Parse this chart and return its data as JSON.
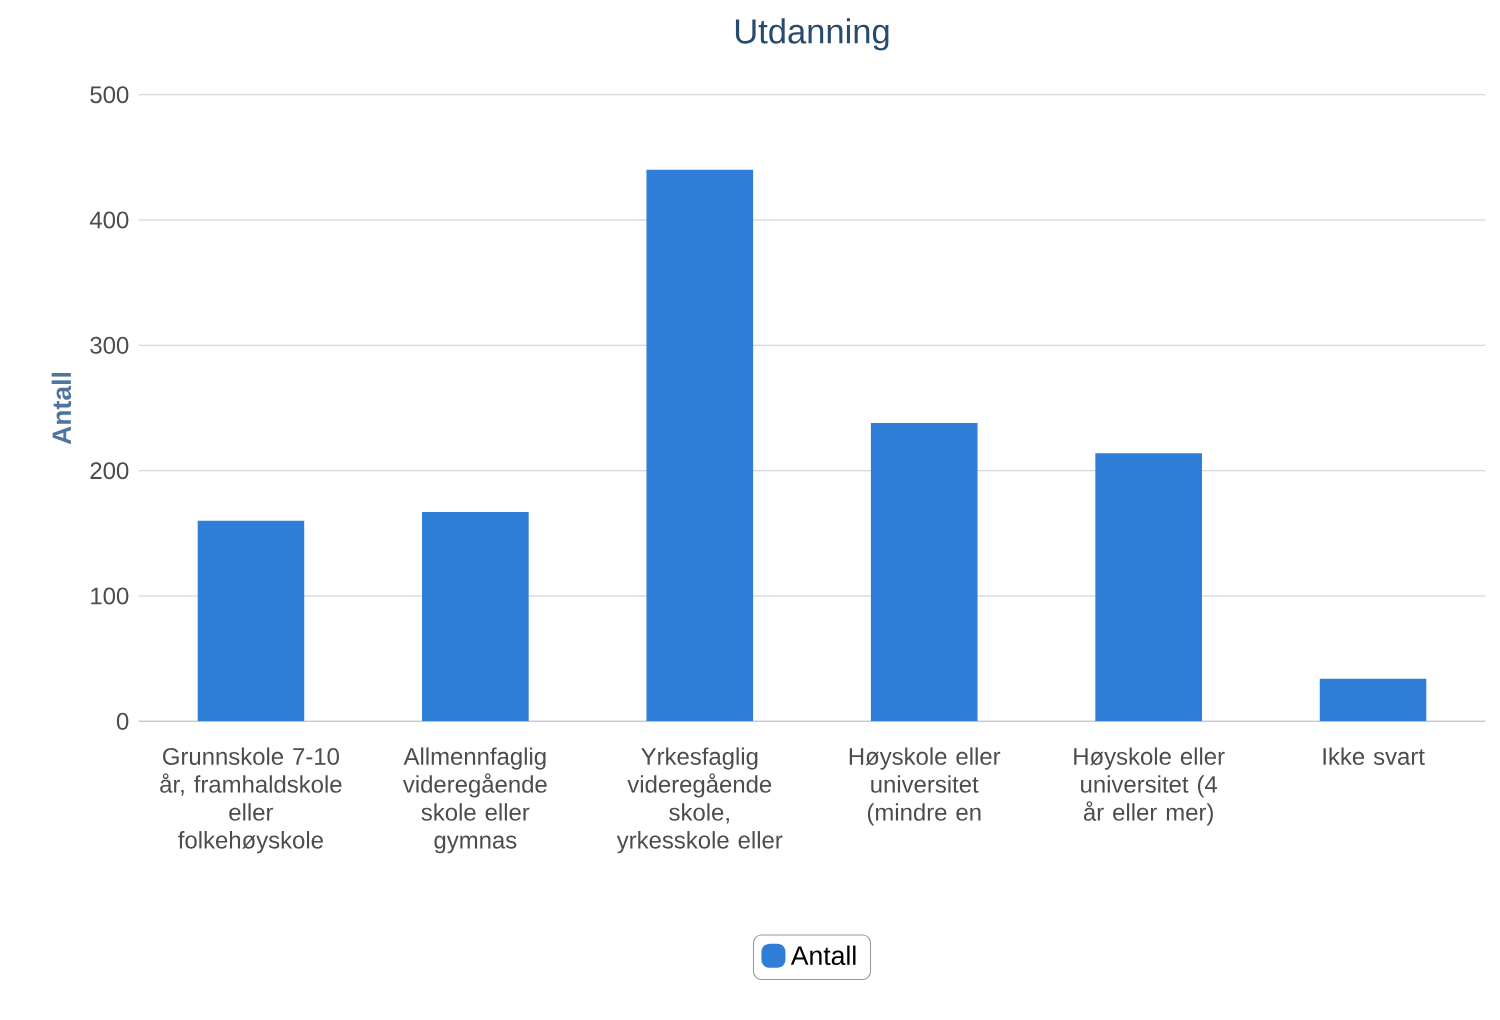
{
  "chart_data": {
    "type": "bar",
    "title": "Utdanning",
    "ylabel": "Antall",
    "categories": [
      "Grunnskole 7-10 år, framhaldskole eller folkehøyskole",
      "Allmennfaglig videregående skole eller gymnas",
      "Yrkesfaglig videregående skole, yrkesskole eller",
      "Høyskole eller universitet (mindre en",
      "Høyskole eller universitet (4 år eller mer)",
      "Ikke svart"
    ],
    "series": [
      {
        "name": "Antall",
        "color": "#2f7ed8",
        "values": [
          160,
          167,
          440,
          238,
          214,
          34
        ]
      }
    ],
    "ylim": [
      0,
      500
    ],
    "yticks": [
      0,
      100,
      200,
      300,
      400,
      500
    ],
    "grid": "y",
    "legend": "bottom"
  }
}
